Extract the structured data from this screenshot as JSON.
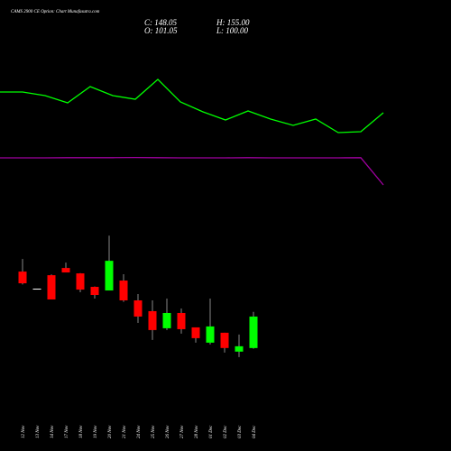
{
  "chart_data": [
    {
      "type": "line",
      "ylim": [
        0,
        100
      ],
      "series": [
        {
          "color": "#00ff00",
          "values": [
            74,
            74,
            72,
            68,
            77,
            72,
            70,
            81,
            68.5,
            63,
            58.5,
            63.5,
            59,
            55.5,
            59,
            51.5,
            52,
            62.5
          ]
        },
        {
          "color": "#a000a0",
          "values": [
            37.5,
            37.5,
            37.5,
            37.6,
            37.6,
            37.6,
            37.7,
            37.6,
            37.5,
            37.5,
            37.5,
            37.6,
            37.5,
            37.5,
            37.5,
            37.5,
            37.6,
            22.5
          ]
        }
      ]
    },
    {
      "type": "candlestick",
      "title": "CAMS 2900 CE Option: Chart Munafasutra.com",
      "summary": [
        "C: 148.05",
        "H: 155.00",
        "O: 101.05",
        "L: 100.00"
      ],
      "ylim": [
        82,
        284
      ],
      "up_color": "#00ff00",
      "down_color": "#ff0000",
      "flat_color": "#ffffff",
      "categories": [
        "12 Nov",
        "13 Nov",
        "14 Nov",
        "17 Nov",
        "18 Nov",
        "19 Nov",
        "20 Nov",
        "21 Nov",
        "24 Nov",
        "25 Nov",
        "26 Nov",
        "27 Nov",
        "28 Nov",
        "01 Dec",
        "02 Dec",
        "03 Dec",
        "04 Dec"
      ],
      "open": [
        215.2,
        189.7,
        209.8,
        220.6,
        212.5,
        192.4,
        187,
        201.8,
        172.2,
        156.1,
        130.6,
        153.4,
        131.9,
        109.1,
        123.9,
        95.7,
        101.05
      ],
      "high": [
        234,
        189.7,
        211,
        228.6,
        213,
        193,
        268.9,
        211.2,
        181.6,
        172.2,
        174.9,
        160.1,
        131.9,
        174.9,
        123.9,
        121.2,
        155
      ],
      "low": [
        196,
        189.7,
        173.6,
        213.9,
        184.3,
        174.9,
        187,
        170,
        138.6,
        113.1,
        127.9,
        122.5,
        109.1,
        106.4,
        94.3,
        87.6,
        100
      ],
      "close": [
        197.7,
        189.7,
        173.6,
        213.9,
        188.3,
        180.3,
        231.3,
        172.2,
        148.05,
        127.9,
        153.4,
        129.2,
        115.8,
        133.3,
        101.1,
        103.7,
        148.05
      ]
    }
  ]
}
